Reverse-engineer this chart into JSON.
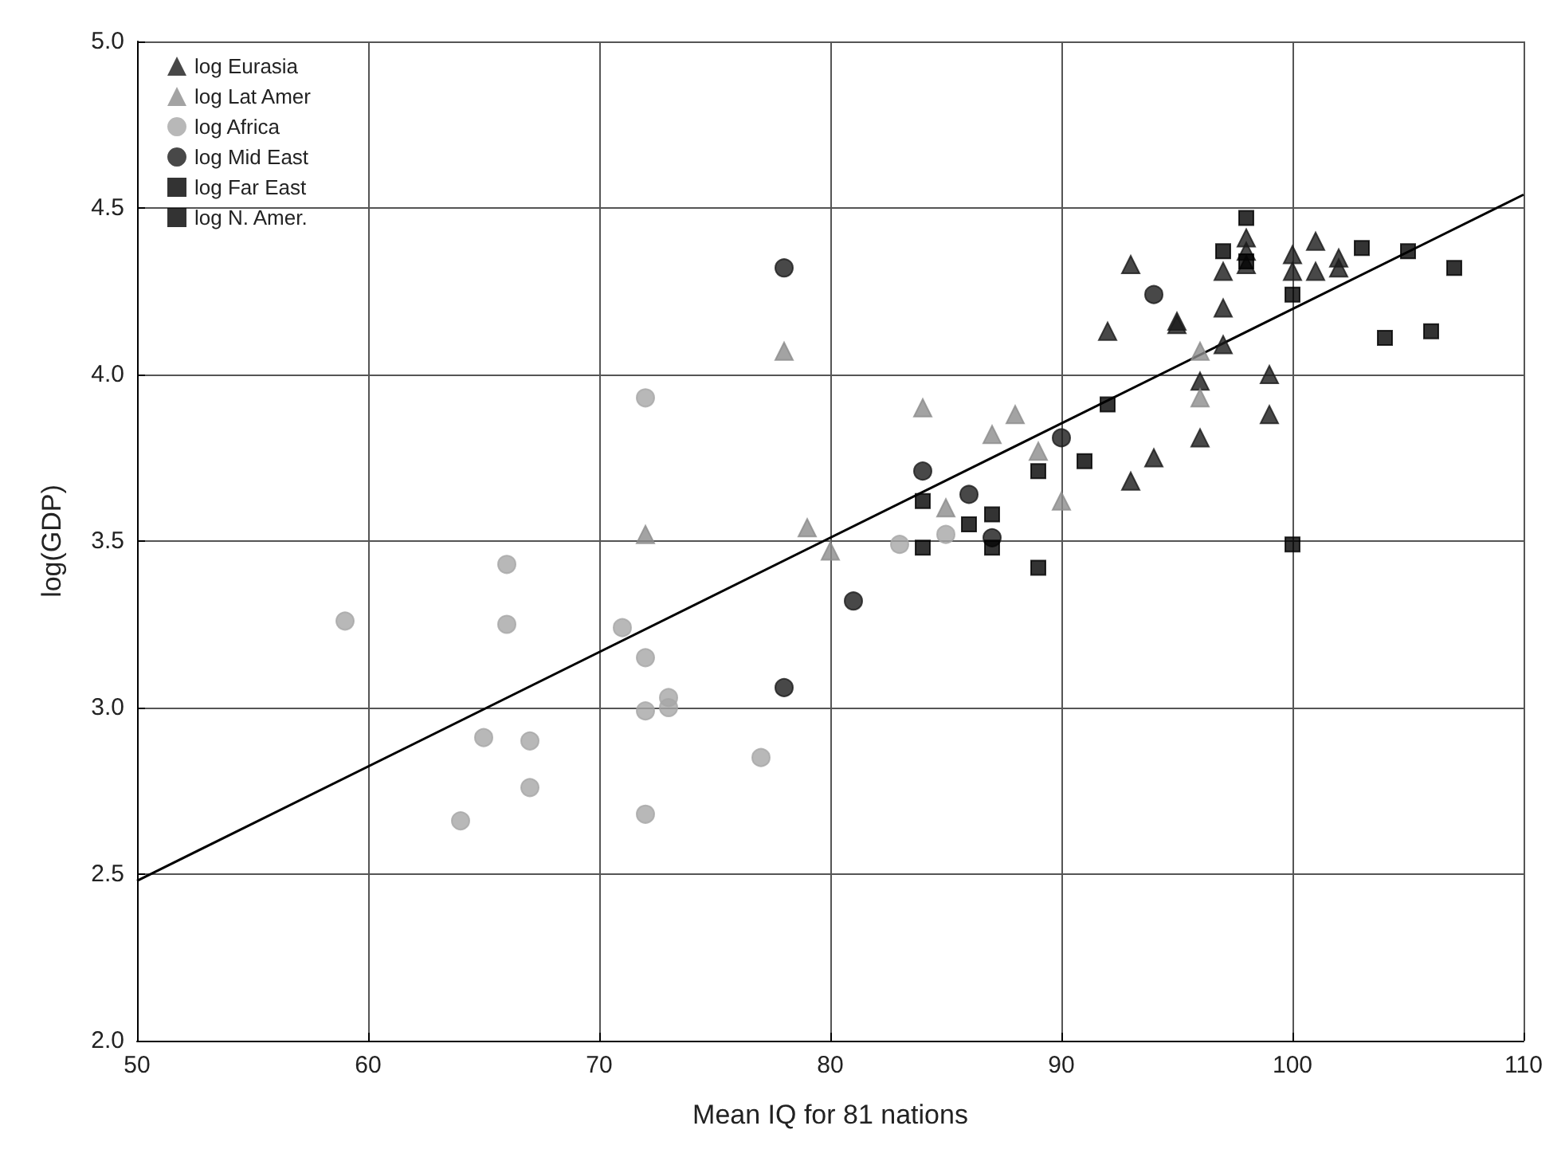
{
  "chart_data": {
    "type": "scatter",
    "xlabel": "Mean IQ for 81 nations",
    "ylabel": "log(GDP)",
    "xlim": [
      50,
      110
    ],
    "ylim": [
      2.0,
      5.0
    ],
    "xticks": [
      50,
      60,
      70,
      80,
      90,
      100,
      110
    ],
    "yticks": [
      {
        "value": 2.0,
        "label": "2.0"
      },
      {
        "value": 2.5,
        "label": "2.5"
      },
      {
        "value": 3.0,
        "label": "3.0"
      },
      {
        "value": 3.5,
        "label": "3.5"
      },
      {
        "value": 4.0,
        "label": "4.0"
      },
      {
        "value": 4.5,
        "label": "4.5"
      },
      {
        "value": 5.0,
        "label": "5.0"
      }
    ],
    "grid": true,
    "legend": "top left",
    "series": [
      {
        "name": "log Eurasia",
        "color": "#1a1a1a",
        "marker": "triangle",
        "x": [
          92,
          93,
          93,
          94,
          95,
          95,
          96,
          96,
          97,
          97,
          97,
          98,
          98,
          98,
          99,
          99,
          100,
          100,
          101,
          101,
          102,
          102
        ],
        "values": [
          4.13,
          4.33,
          3.68,
          3.75,
          4.16,
          4.15,
          3.98,
          3.81,
          4.31,
          4.2,
          4.09,
          4.41,
          4.37,
          4.33,
          4.0,
          3.88,
          4.36,
          4.31,
          4.4,
          4.31,
          4.35,
          4.32
        ]
      },
      {
        "name": "log Lat Amer",
        "color": "#8c8c8c",
        "marker": "triangle",
        "x": [
          72,
          78,
          79,
          80,
          84,
          85,
          87,
          88,
          89,
          90,
          96,
          96
        ],
        "values": [
          3.52,
          4.07,
          3.54,
          3.47,
          3.9,
          3.6,
          3.82,
          3.88,
          3.77,
          3.62,
          4.07,
          3.93
        ]
      },
      {
        "name": "log Africa",
        "color": "#a6a6a6",
        "marker": "circle",
        "x": [
          59,
          64,
          65,
          66,
          66,
          67,
          67,
          71,
          72,
          72,
          72,
          72,
          73,
          73,
          77,
          83,
          85
        ],
        "values": [
          3.26,
          2.66,
          2.91,
          3.43,
          3.25,
          2.9,
          2.76,
          3.24,
          3.93,
          3.15,
          2.99,
          2.68,
          3.03,
          3.0,
          2.85,
          3.49,
          3.52
        ]
      },
      {
        "name": "log Mid East",
        "color": "#1a1a1a",
        "marker": "circle",
        "x": [
          78,
          78,
          81,
          84,
          86,
          87,
          90,
          94
        ],
        "values": [
          4.32,
          3.06,
          3.32,
          3.71,
          3.64,
          3.51,
          3.81,
          4.24
        ]
      },
      {
        "name": "log Far East",
        "color": "#000000",
        "marker": "square",
        "x": [
          84,
          84,
          86,
          87,
          87,
          89,
          89,
          91,
          92,
          98,
          100,
          100,
          103,
          104,
          105,
          106,
          107
        ],
        "values": [
          3.62,
          3.48,
          3.55,
          3.58,
          3.48,
          3.71,
          3.42,
          3.74,
          3.91,
          4.34,
          4.24,
          3.49,
          4.38,
          4.11,
          4.37,
          4.13,
          4.32
        ]
      },
      {
        "name": "log N. Amer.",
        "color": "#000000",
        "marker": "square",
        "x": [
          97,
          98
        ],
        "values": [
          4.37,
          4.47
        ]
      },
      {
        "type": "line",
        "color": "#000000",
        "marker": "none",
        "x": [
          50,
          110
        ],
        "values": [
          2.48,
          4.54
        ]
      }
    ]
  }
}
